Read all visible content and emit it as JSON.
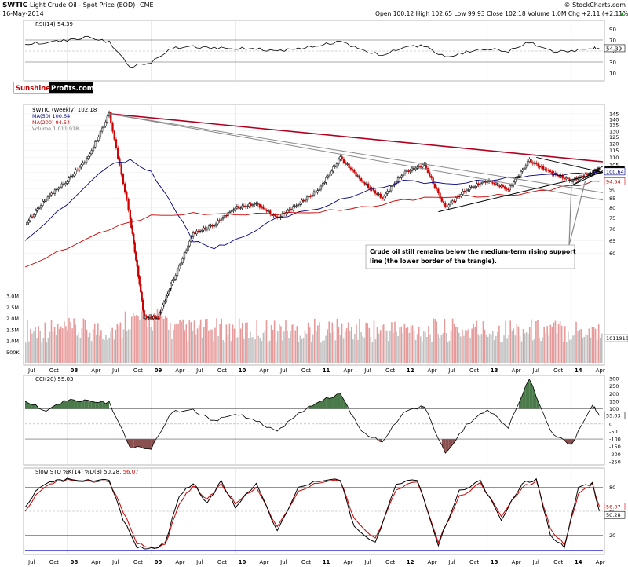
{
  "header": {
    "title_symbol": "$WTIC",
    "title_name": "Light Crude Oil - Spot Price (EOD)",
    "exchange": "CME",
    "date": "16-May-2014",
    "credit": "© StockCharts.com",
    "quote": "Open 100.12  High 102.65  Low 99.93  Close 102.18  Volume 1.0M  Chg +2.11 (+2.11%)",
    "quote_arrow": "▲"
  },
  "logo": {
    "part1": "Sunshine",
    "part2": "Profits.com"
  },
  "annotation": {
    "line1": "Crude oil still remains below the medium-term rising support",
    "line2": "line (the lower border of the trangle)."
  },
  "x_axis": {
    "labels": [
      "Jul",
      "Oct",
      "08",
      "Apr",
      "Jul",
      "Oct",
      "09",
      "Apr",
      "Jul",
      "Oct",
      "10",
      "Apr",
      "Jul",
      "Oct",
      "11",
      "Apr",
      "Jul",
      "Oct",
      "12",
      "Apr",
      "Jul",
      "Oct",
      "13",
      "Apr",
      "Jul",
      "Oct",
      "14",
      "Apr"
    ],
    "bold": [
      "08",
      "09",
      "10",
      "11",
      "12",
      "13",
      "14"
    ]
  },
  "colors": {
    "up": "#000000",
    "down": "#cc0000",
    "ma50": "#000080",
    "ma200": "#cc0000",
    "volume": "#e89a9a",
    "osc_fill": "#4a7a4a",
    "osc_fill_low": "#8a5050",
    "trend_red": "#b00020",
    "trend_gray": "#888888",
    "pri_label_bg": "#000000",
    "blue_line": "#0000cc"
  },
  "chart_data": [
    {
      "type": "line",
      "title": "RSI(14) 54.39",
      "yticks": [
        10,
        30,
        50,
        70,
        90
      ],
      "ylim": [
        0,
        100
      ],
      "last_value": "54.39",
      "levels": [
        30,
        70
      ],
      "x": [
        "Jul 07",
        "Oct 07",
        "Jan 08",
        "Apr 08",
        "Jul 08",
        "Oct 08",
        "Jan 09",
        "Apr 09",
        "Jul 09",
        "Oct 09",
        "Jan 10",
        "Apr 10",
        "Jul 10",
        "Oct 10",
        "Jan 11",
        "Apr 11",
        "Jul 11",
        "Oct 11",
        "Jan 12",
        "Apr 12",
        "Jul 12",
        "Oct 12",
        "Jan 13",
        "Apr 13",
        "Jul 13",
        "Oct 13",
        "Jan 14",
        "Apr 14",
        "May 14"
      ],
      "values": [
        62,
        66,
        70,
        75,
        66,
        22,
        30,
        55,
        58,
        56,
        55,
        54,
        50,
        55,
        60,
        68,
        52,
        42,
        58,
        60,
        38,
        48,
        55,
        50,
        66,
        50,
        50,
        56,
        54
      ]
    },
    {
      "type": "line",
      "title": "$WTIC (Weekly) 102.18",
      "series": [
        {
          "name": "$WTIC (Weekly) 102.18",
          "x": [
            "Jul 07",
            "Oct 07",
            "Jan 08",
            "Apr 08",
            "Jul 08",
            "Oct 08",
            "Dec 08",
            "Feb 09",
            "Apr 09",
            "Jul 09",
            "Oct 09",
            "Jan 10",
            "Apr 10",
            "Jul 10",
            "Oct 10",
            "Jan 11",
            "Apr 11",
            "Jul 11",
            "Oct 11",
            "Jan 12",
            "Apr 12",
            "Jul 12",
            "Oct 12",
            "Jan 13",
            "Apr 13",
            "Jul 13",
            "Oct 13",
            "Jan 14",
            "Apr 14",
            "May 14"
          ],
          "values": [
            72,
            85,
            95,
            110,
            145,
            75,
            40,
            40,
            50,
            68,
            72,
            80,
            82,
            75,
            82,
            90,
            110,
            95,
            85,
            100,
            105,
            80,
            90,
            95,
            90,
            108,
            100,
            95,
            100,
            102.18
          ]
        },
        {
          "name": "MA(50) 100.64",
          "x": [
            "Jul 07",
            "Jan 08",
            "Jul 08",
            "Oct 08",
            "Jan 09",
            "Apr 09",
            "Jul 09",
            "Oct 09",
            "Jan 10",
            "Jul 10",
            "Jan 11",
            "Jul 11",
            "Jan 12",
            "Jul 12",
            "Jan 13",
            "Jul 13",
            "Jan 14",
            "May 14"
          ],
          "values": [
            65,
            82,
            105,
            108,
            100,
            82,
            65,
            62,
            65,
            75,
            80,
            88,
            95,
            93,
            95,
            98,
            99,
            100.64
          ]
        },
        {
          "name": "MA(200) 94.54",
          "x": [
            "Jul 07",
            "Jan 08",
            "Jul 08",
            "Jan 09",
            "Jul 09",
            "Jan 10",
            "Jul 10",
            "Jan 11",
            "Jul 11",
            "Jan 12",
            "Jul 12",
            "Jan 13",
            "Jul 13",
            "Jan 14",
            "May 14"
          ],
          "values": [
            55,
            62,
            70,
            76,
            77,
            77,
            77,
            78,
            80,
            84,
            86,
            86,
            88,
            92,
            94.54
          ]
        }
      ],
      "volume_label": "Volume 1,011,918",
      "y_right_ticks": [
        60,
        65,
        70,
        75,
        80,
        85,
        90,
        95,
        100,
        105,
        110,
        115,
        120,
        125,
        130,
        135,
        140,
        145
      ],
      "ylim": [
        60,
        145
      ],
      "volume_ticks": [
        "500K",
        "1.0M",
        "1.5M",
        "2.0M",
        "2.5M",
        "3.0M"
      ],
      "price_labels": [
        "102.18",
        "100.64",
        "94.54",
        "1011918"
      ]
    },
    {
      "type": "line",
      "title": "CCI(20) 55.03",
      "yticks": [
        -250,
        -200,
        -150,
        -100,
        -50,
        0,
        50,
        100,
        150,
        200,
        250,
        300
      ],
      "ylim": [
        -250,
        300
      ],
      "levels": [
        -100,
        100
      ],
      "last_value": "55.03",
      "x": [
        "Jul 07",
        "Oct 07",
        "Jan 08",
        "Apr 08",
        "Jul 08",
        "Oct 08",
        "Jan 09",
        "Apr 09",
        "Jul 09",
        "Oct 09",
        "Jan 10",
        "Apr 10",
        "Jul 10",
        "Oct 10",
        "Jan 11",
        "Apr 11",
        "Jul 11",
        "Oct 11",
        "Jan 12",
        "Apr 12",
        "Jul 12",
        "Oct 12",
        "Jan 13",
        "Apr 13",
        "Jul 13",
        "Oct 13",
        "Jan 14",
        "Apr 14",
        "May 14"
      ],
      "values": [
        150,
        90,
        160,
        150,
        140,
        -150,
        -160,
        80,
        90,
        20,
        70,
        20,
        -50,
        70,
        150,
        200,
        -50,
        -120,
        80,
        120,
        -200,
        -10,
        100,
        -20,
        300,
        -50,
        -140,
        130,
        55
      ]
    },
    {
      "type": "line",
      "title": "Slow STO %K(14) %D(3) 50.28, 56.07",
      "yticks": [
        20,
        50,
        80
      ],
      "ylim": [
        0,
        100
      ],
      "levels": [
        20,
        50,
        80
      ],
      "last_values": [
        "56.07",
        "50.28"
      ],
      "series": [
        {
          "name": "%K(14)",
          "x": [
            "Jul 07",
            "Sep 07",
            "Nov 07",
            "Jan 08",
            "Apr 08",
            "Jul 08",
            "Sep 08",
            "Nov 08",
            "Jan 09",
            "Mar 09",
            "May 09",
            "Jul 09",
            "Sep 09",
            "Nov 09",
            "Jan 10",
            "Apr 10",
            "Jul 10",
            "Oct 10",
            "Jan 11",
            "Apr 11",
            "Jun 11",
            "Sep 11",
            "Dec 11",
            "Mar 12",
            "Jun 12",
            "Sep 12",
            "Dec 12",
            "Mar 13",
            "Jun 13",
            "Aug 13",
            "Oct 13",
            "Dec 13",
            "Feb 14",
            "Apr 14",
            "May 14"
          ],
          "values": [
            55,
            80,
            88,
            90,
            88,
            90,
            40,
            5,
            3,
            10,
            70,
            85,
            60,
            88,
            55,
            85,
            25,
            80,
            88,
            90,
            30,
            10,
            85,
            90,
            8,
            75,
            88,
            40,
            85,
            90,
            20,
            5,
            80,
            85,
            50.28
          ]
        },
        {
          "name": "%D(3)",
          "x": [
            "Jul 07",
            "Sep 07",
            "Nov 07",
            "Jan 08",
            "Apr 08",
            "Jul 08",
            "Sep 08",
            "Nov 08",
            "Jan 09",
            "Mar 09",
            "May 09",
            "Jul 09",
            "Sep 09",
            "Nov 09",
            "Jan 10",
            "Apr 10",
            "Jul 10",
            "Oct 10",
            "Jan 11",
            "Apr 11",
            "Jun 11",
            "Sep 11",
            "Dec 11",
            "Mar 12",
            "Jun 12",
            "Sep 12",
            "Dec 12",
            "Mar 13",
            "Jun 13",
            "Aug 13",
            "Oct 13",
            "Dec 13",
            "Feb 14",
            "Apr 14",
            "May 14"
          ],
          "values": [
            50,
            75,
            86,
            89,
            87,
            88,
            50,
            10,
            4,
            8,
            60,
            82,
            65,
            84,
            60,
            80,
            30,
            75,
            86,
            89,
            40,
            15,
            78,
            88,
            12,
            68,
            85,
            45,
            80,
            88,
            28,
            8,
            72,
            84,
            56.07
          ]
        }
      ]
    }
  ]
}
